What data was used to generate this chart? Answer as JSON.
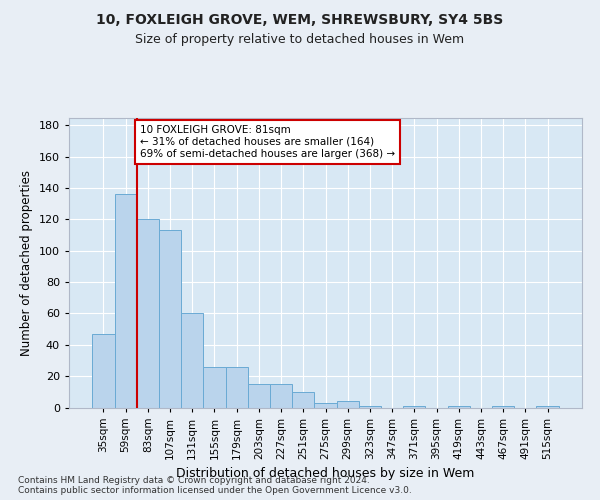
{
  "title1": "10, FOXLEIGH GROVE, WEM, SHREWSBURY, SY4 5BS",
  "title2": "Size of property relative to detached houses in Wem",
  "xlabel": "Distribution of detached houses by size in Wem",
  "ylabel": "Number of detached properties",
  "bar_labels": [
    "35sqm",
    "59sqm",
    "83sqm",
    "107sqm",
    "131sqm",
    "155sqm",
    "179sqm",
    "203sqm",
    "227sqm",
    "251sqm",
    "275sqm",
    "299sqm",
    "323sqm",
    "347sqm",
    "371sqm",
    "395sqm",
    "419sqm",
    "443sqm",
    "467sqm",
    "491sqm",
    "515sqm"
  ],
  "bar_values": [
    47,
    136,
    120,
    113,
    60,
    26,
    26,
    15,
    15,
    10,
    3,
    4,
    1,
    0,
    1,
    0,
    1,
    0,
    1,
    0,
    1
  ],
  "bar_color": "#bad4ec",
  "bar_edge_color": "#6aaad4",
  "marker_color": "#cc0000",
  "marker_bar_index": 2,
  "annotation_text": "10 FOXLEIGH GROVE: 81sqm\n← 31% of detached houses are smaller (164)\n69% of semi-detached houses are larger (368) →",
  "annotation_box_color": "#ffffff",
  "annotation_box_edge": "#cc0000",
  "ylim": [
    0,
    185
  ],
  "yticks": [
    0,
    20,
    40,
    60,
    80,
    100,
    120,
    140,
    160,
    180
  ],
  "footnote": "Contains HM Land Registry data © Crown copyright and database right 2024.\nContains public sector information licensed under the Open Government Licence v3.0.",
  "background_color": "#e8eef5",
  "plot_bg_color": "#d8e8f4"
}
